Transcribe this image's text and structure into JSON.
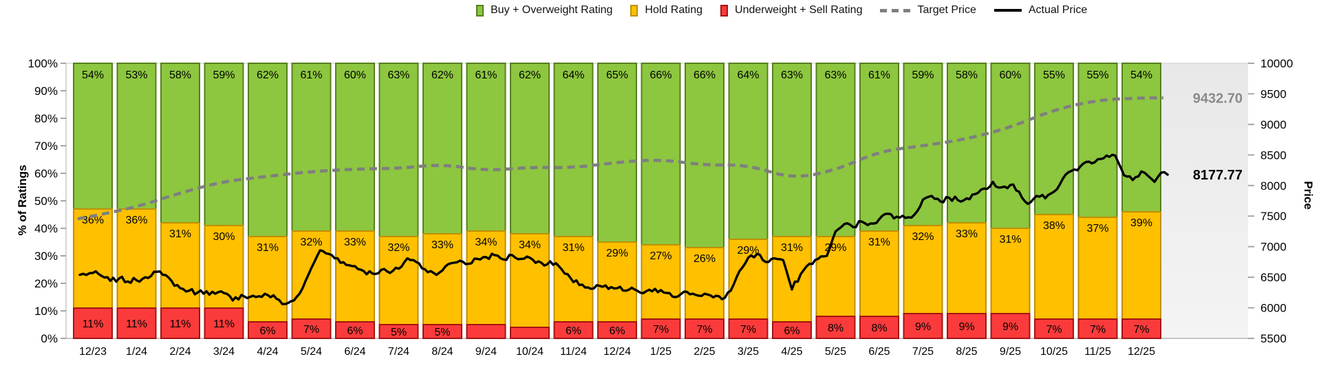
{
  "legend": {
    "items": [
      {
        "label": "Buy + Overweight Rating",
        "color": "#8dc63f"
      },
      {
        "label": "Hold Rating",
        "color": "#ffc000"
      },
      {
        "label": "Underweight + Sell Rating",
        "color": "#fb3b3b"
      },
      {
        "label": "Target Price",
        "color": "#7f7f7f"
      },
      {
        "label": "Actual Price",
        "color": "#000000"
      }
    ]
  },
  "axes": {
    "left_title": "% of Ratings",
    "right_title": "Price",
    "left_ticks": [
      "0%",
      "10%",
      "20%",
      "30%",
      "40%",
      "50%",
      "60%",
      "70%",
      "80%",
      "90%",
      "100%"
    ],
    "right_ticks": [
      "5500",
      "6000",
      "6500",
      "7000",
      "7500",
      "8000",
      "8500",
      "9000",
      "9500",
      "10000"
    ]
  },
  "chart_data": {
    "type": "bar",
    "variant": "stacked-100pct-columns-with-price-lines",
    "legend_position": "top",
    "grid": "none",
    "ylim_left": [
      0,
      100
    ],
    "ylim_right": [
      5500,
      10000
    ],
    "categories": [
      "12/23",
      "1/24",
      "2/24",
      "3/24",
      "4/24",
      "5/24",
      "6/24",
      "7/24",
      "8/24",
      "9/24",
      "10/24",
      "11/24",
      "12/24",
      "1/25",
      "2/25",
      "3/25",
      "4/25",
      "5/25",
      "6/25",
      "7/25",
      "8/25",
      "9/25",
      "10/25",
      "11/25",
      "12/25"
    ],
    "series": [
      {
        "name": "Buy + Overweight Rating",
        "color": "#8dc63f",
        "border": "#55801f",
        "values": [
          54,
          53,
          58,
          59,
          62,
          61,
          60,
          63,
          62,
          61,
          62,
          64,
          65,
          66,
          66,
          64,
          63,
          63,
          61,
          59,
          58,
          60,
          55,
          55,
          54
        ]
      },
      {
        "name": "Hold Rating",
        "color": "#ffc000",
        "border": "#bf8f00",
        "values": [
          36,
          36,
          31,
          30,
          31,
          32,
          33,
          32,
          33,
          34,
          34,
          31,
          29,
          27,
          26,
          29,
          31,
          29,
          31,
          32,
          33,
          31,
          38,
          37,
          39
        ]
      },
      {
        "name": "Underweight + Sell Rating",
        "color": "#fb3b3b",
        "border": "#a51212",
        "values": [
          11,
          11,
          11,
          11,
          6,
          7,
          6,
          5,
          5,
          5,
          4,
          6,
          6,
          7,
          7,
          7,
          6,
          8,
          8,
          9,
          9,
          9,
          7,
          7,
          7
        ],
        "labels": [
          "11%",
          "11%",
          "11%",
          "11%",
          "6%",
          "7%",
          "6%",
          "5%",
          "5%",
          null,
          null,
          "6%",
          "6%",
          "7%",
          "7%",
          "7%",
          "6%",
          "8%",
          "8%",
          "9%",
          "9%",
          "9%",
          "7%",
          "7%",
          "7%"
        ]
      }
    ],
    "lines": [
      {
        "name": "Target Price",
        "style": "dashed",
        "color": "#7f7f7f",
        "axis": "right",
        "monthly_values": [
          7500,
          7650,
          7880,
          8070,
          8150,
          8230,
          8270,
          8280,
          8350,
          8240,
          8300,
          8290,
          8380,
          8430,
          8330,
          8340,
          8110,
          8250,
          8560,
          8650,
          8760,
          8950,
          9240,
          9400,
          9432.7
        ]
      },
      {
        "name": "Actual Price",
        "style": "solid",
        "color": "#000000",
        "axis": "right",
        "points": [
          [
            -0.3,
            6540
          ],
          [
            0,
            6570
          ],
          [
            0.2,
            6520
          ],
          [
            0.4,
            6440
          ],
          [
            0.6,
            6480
          ],
          [
            0.8,
            6430
          ],
          [
            1,
            6450
          ],
          [
            1.2,
            6500
          ],
          [
            1.4,
            6590
          ],
          [
            1.6,
            6540
          ],
          [
            1.8,
            6440
          ],
          [
            2,
            6320
          ],
          [
            2.2,
            6280
          ],
          [
            2.4,
            6250
          ],
          [
            2.6,
            6270
          ],
          [
            2.8,
            6230
          ],
          [
            3,
            6240
          ],
          [
            3.2,
            6120
          ],
          [
            3.4,
            6210
          ],
          [
            3.6,
            6180
          ],
          [
            3.8,
            6190
          ],
          [
            4,
            6210
          ],
          [
            4.2,
            6150
          ],
          [
            4.4,
            6060
          ],
          [
            4.6,
            6120
          ],
          [
            4.8,
            6320
          ],
          [
            5,
            6650
          ],
          [
            5.2,
            6940
          ],
          [
            5.4,
            6880
          ],
          [
            5.6,
            6810
          ],
          [
            5.8,
            6700
          ],
          [
            6,
            6680
          ],
          [
            6.2,
            6600
          ],
          [
            6.4,
            6560
          ],
          [
            6.6,
            6620
          ],
          [
            6.8,
            6570
          ],
          [
            7,
            6640
          ],
          [
            7.2,
            6810
          ],
          [
            7.4,
            6750
          ],
          [
            7.6,
            6630
          ],
          [
            7.8,
            6570
          ],
          [
            8,
            6610
          ],
          [
            8.2,
            6730
          ],
          [
            8.4,
            6770
          ],
          [
            8.6,
            6720
          ],
          [
            8.8,
            6800
          ],
          [
            9,
            6830
          ],
          [
            9.2,
            6860
          ],
          [
            9.4,
            6790
          ],
          [
            9.6,
            6860
          ],
          [
            9.8,
            6800
          ],
          [
            10,
            6820
          ],
          [
            10.2,
            6760
          ],
          [
            10.4,
            6710
          ],
          [
            10.6,
            6730
          ],
          [
            10.8,
            6560
          ],
          [
            11,
            6420
          ],
          [
            11.2,
            6380
          ],
          [
            11.4,
            6310
          ],
          [
            11.6,
            6360
          ],
          [
            11.8,
            6310
          ],
          [
            12,
            6320
          ],
          [
            12.2,
            6280
          ],
          [
            12.4,
            6300
          ],
          [
            12.6,
            6240
          ],
          [
            12.8,
            6270
          ],
          [
            13,
            6290
          ],
          [
            13.2,
            6240
          ],
          [
            13.4,
            6190
          ],
          [
            13.6,
            6260
          ],
          [
            13.8,
            6210
          ],
          [
            14,
            6230
          ],
          [
            14.2,
            6170
          ],
          [
            14.4,
            6140
          ],
          [
            14.6,
            6280
          ],
          [
            14.8,
            6600
          ],
          [
            15,
            6820
          ],
          [
            15.2,
            6880
          ],
          [
            15.4,
            6750
          ],
          [
            15.6,
            6810
          ],
          [
            15.8,
            6780
          ],
          [
            16,
            6300
          ],
          [
            16.2,
            6550
          ],
          [
            16.4,
            6720
          ],
          [
            16.6,
            6800
          ],
          [
            16.8,
            6850
          ],
          [
            17,
            7250
          ],
          [
            17.2,
            7370
          ],
          [
            17.4,
            7320
          ],
          [
            17.6,
            7410
          ],
          [
            17.8,
            7380
          ],
          [
            18,
            7450
          ],
          [
            18.2,
            7540
          ],
          [
            18.4,
            7490
          ],
          [
            18.6,
            7470
          ],
          [
            18.8,
            7520
          ],
          [
            19,
            7770
          ],
          [
            19.2,
            7830
          ],
          [
            19.4,
            7740
          ],
          [
            19.6,
            7800
          ],
          [
            19.8,
            7760
          ],
          [
            20,
            7790
          ],
          [
            20.2,
            7860
          ],
          [
            20.4,
            7950
          ],
          [
            20.6,
            8060
          ],
          [
            20.8,
            7970
          ],
          [
            21,
            8010
          ],
          [
            21.2,
            7900
          ],
          [
            21.4,
            7700
          ],
          [
            21.6,
            7830
          ],
          [
            21.8,
            7790
          ],
          [
            22,
            7900
          ],
          [
            22.2,
            8110
          ],
          [
            22.4,
            8240
          ],
          [
            22.6,
            8310
          ],
          [
            22.8,
            8390
          ],
          [
            23,
            8430
          ],
          [
            23.2,
            8490
          ],
          [
            23.4,
            8490
          ],
          [
            23.6,
            8170
          ],
          [
            23.8,
            8090
          ],
          [
            24,
            8230
          ],
          [
            24.15,
            8160
          ],
          [
            24.3,
            8060
          ],
          [
            24.45,
            8210
          ],
          [
            24.6,
            8177.77
          ]
        ]
      }
    ],
    "end_labels": [
      {
        "text": "9432.70",
        "value": 9432.7,
        "color": "#8a8a8a"
      },
      {
        "text": "8177.77",
        "value": 8177.77,
        "color": "#000000"
      }
    ]
  }
}
